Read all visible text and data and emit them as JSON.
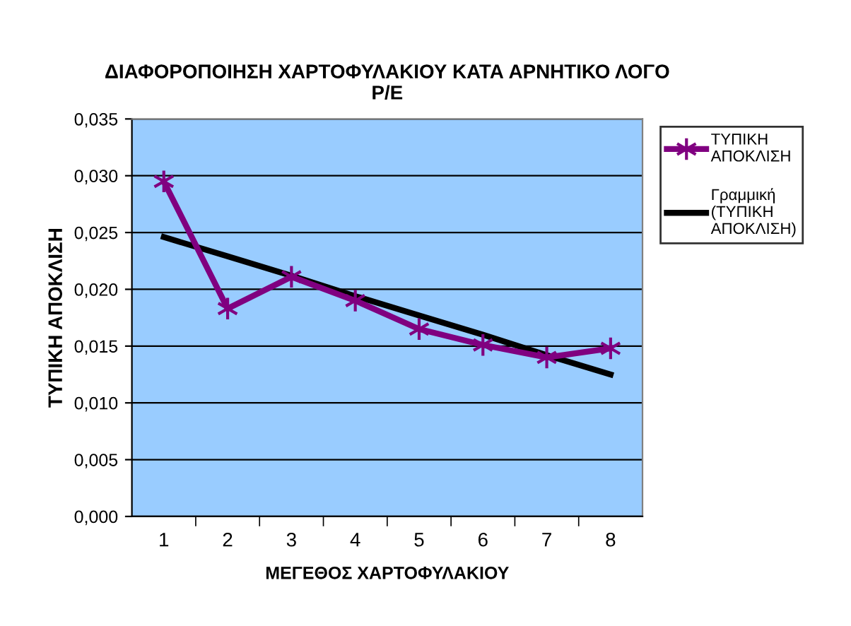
{
  "chart_data": {
    "type": "line",
    "title": "ΔΙΑΦΟΡΟΠΟΙΗΣΗ ΧΑΡΤΟΦΥΛΑΚΙΟΥ ΚΑΤΑ ΑΡΝΗΤΙΚΟ ΛΟΓΟ\nP/E",
    "xlabel": "ΜΕΓΕΘΟΣ ΧΑΡΤΟΦΥΛΑΚΙΟΥ",
    "ylabel": "ΤΥΠΙΚΗ ΑΠΟΚΛΙΣΗ",
    "categories": [
      "1",
      "2",
      "3",
      "4",
      "5",
      "6",
      "7",
      "8"
    ],
    "series": [
      {
        "name": "ΤΥΠΙΚΗ ΑΠΟΚΛΙΣΗ",
        "color": "#800080",
        "marker": "cross",
        "values": [
          0.0295,
          0.0183,
          0.0211,
          0.019,
          0.0165,
          0.0151,
          0.014,
          0.0148
        ]
      },
      {
        "name": "Γραμμική (ΤΥΠΙΚΗ ΑΠΟΚΛΙΣΗ)",
        "color": "#000000",
        "marker": "none",
        "values": [
          0.0246,
          0.0229,
          0.0212,
          0.0194,
          0.0177,
          0.016,
          0.0142,
          0.0125
        ]
      }
    ],
    "ylim": [
      0,
      0.035
    ],
    "yticks": [
      {
        "value": 0,
        "label": "0,000"
      },
      {
        "value": 0.005,
        "label": "0,005"
      },
      {
        "value": 0.01,
        "label": "0,010"
      },
      {
        "value": 0.015,
        "label": "0,015"
      },
      {
        "value": 0.02,
        "label": "0,020"
      },
      {
        "value": 0.025,
        "label": "0,025"
      },
      {
        "value": 0.03,
        "label": "0,030"
      },
      {
        "value": 0.035,
        "label": "0,035"
      }
    ],
    "grid": "y",
    "legend": "right",
    "line_style": "solid"
  }
}
